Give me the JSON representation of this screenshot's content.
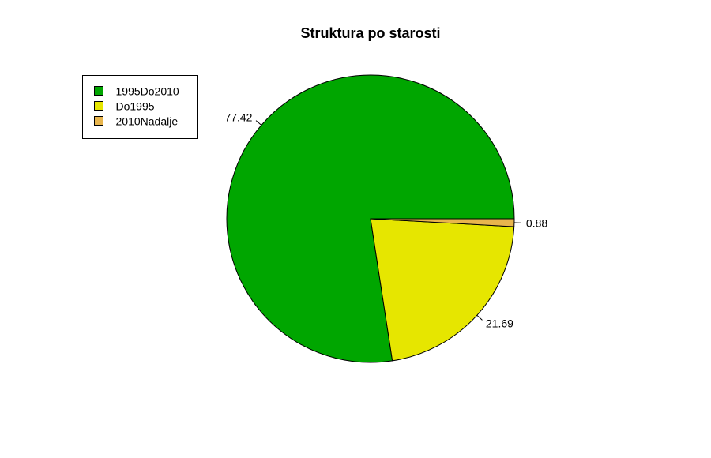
{
  "chart_data": {
    "type": "pie",
    "title": "Struktura po starosti",
    "slices": [
      {
        "name": "1995Do2010",
        "value": 77.42,
        "label": "77.42",
        "color": "#00A600"
      },
      {
        "name": "Do1995",
        "value": 21.69,
        "label": "21.69",
        "color": "#E6E600"
      },
      {
        "name": "2010Nadalje",
        "value": 0.88,
        "label": "0.88",
        "color": "#E8B54D"
      }
    ],
    "legend": {
      "placement": "top-left",
      "entries": [
        "1995Do2010",
        "Do1995",
        "2010Nadalje"
      ]
    }
  }
}
